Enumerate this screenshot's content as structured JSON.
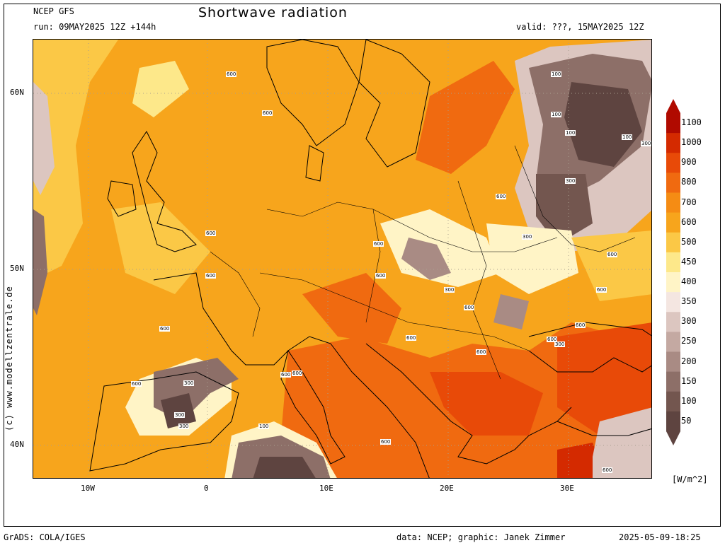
{
  "header": {
    "model": "NCEP GFS",
    "run": "run: 09MAY2025 12Z +144h",
    "title": "Shortwave radiation",
    "valid": "valid: ???, 15MAY2025 12Z"
  },
  "map": {
    "lat_labels": [
      "60N",
      "50N",
      "40N"
    ],
    "lon_labels": [
      "10W",
      "0",
      "10E",
      "20E",
      "30E"
    ],
    "contour_labels": [
      "600",
      "600",
      "600",
      "600",
      "600",
      "600",
      "600",
      "600",
      "600",
      "600",
      "600",
      "600",
      "600",
      "600",
      "600",
      "600",
      "600",
      "600",
      "600",
      "600",
      "100",
      "100",
      "100",
      "100",
      "300",
      "300",
      "300",
      "300",
      "300",
      "300",
      "100",
      "300",
      "300"
    ]
  },
  "colorbar": {
    "unit": "[W/m^2]",
    "levels": [
      "1100",
      "1000",
      "900",
      "800",
      "700",
      "600",
      "500",
      "450",
      "400",
      "350",
      "300",
      "250",
      "200",
      "150",
      "100",
      "50"
    ],
    "colors": [
      "#b00a00",
      "#d42a00",
      "#e84a08",
      "#f06a10",
      "#f58c14",
      "#f7a51c",
      "#fbc846",
      "#fde88a",
      "#fff4c6",
      "#f4e6e1",
      "#dcc6c0",
      "#c4a9a2",
      "#a98b84",
      "#8d6f68",
      "#73564f",
      "#5e4440"
    ]
  },
  "footer": {
    "grads": "GrADS: COLA/IGES",
    "credit": "data: NCEP; graphic: Janek Zimmer",
    "timestamp": "2025-05-09-18:25",
    "copyright": "(c)  www.modellzentrale.de"
  }
}
